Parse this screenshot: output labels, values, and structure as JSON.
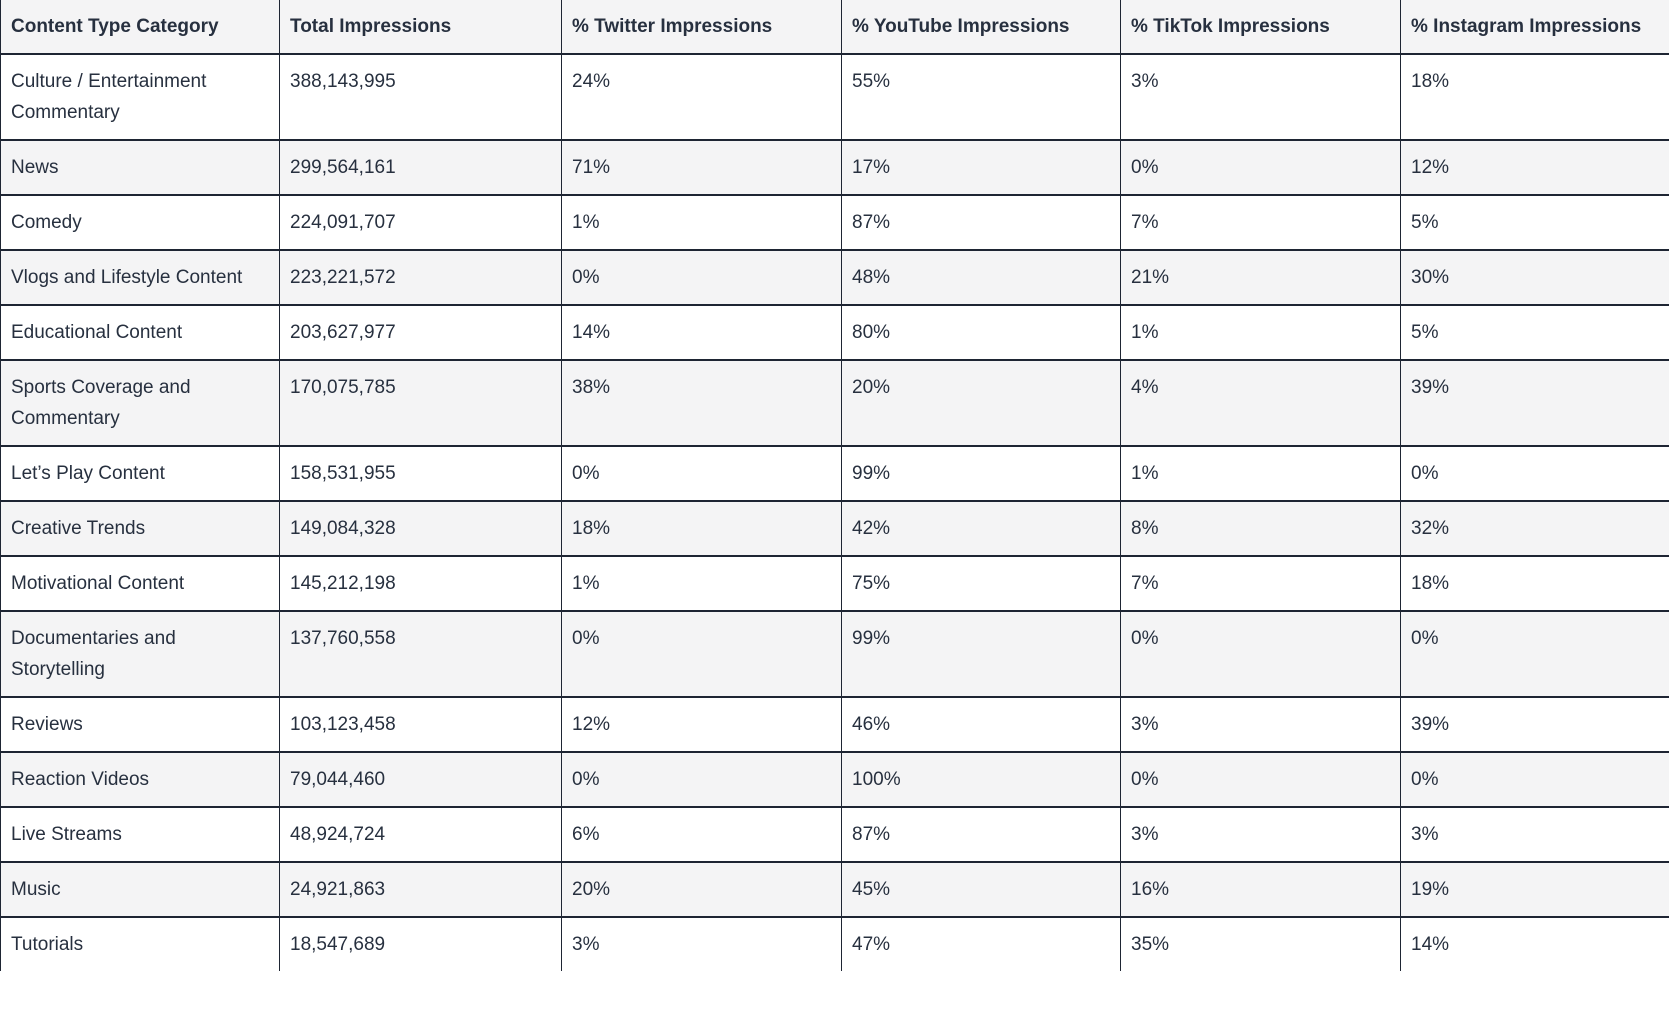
{
  "chart_data": {
    "type": "table",
    "columns": [
      "Content Type Category",
      "Total Impressions",
      "% Twitter Impressions",
      "% YouTube Impressions",
      "% TikTok Impressions",
      "% Instagram Impressions"
    ],
    "rows": [
      [
        "Culture / Entertainment Commentary",
        "388,143,995",
        "24%",
        "55%",
        "3%",
        "18%"
      ],
      [
        "News",
        "299,564,161",
        "71%",
        "17%",
        "0%",
        "12%"
      ],
      [
        "Comedy",
        "224,091,707",
        "1%",
        "87%",
        "7%",
        "5%"
      ],
      [
        "Vlogs and Lifestyle Content",
        "223,221,572",
        "0%",
        "48%",
        "21%",
        "30%"
      ],
      [
        "Educational Content",
        "203,627,977",
        "14%",
        "80%",
        "1%",
        "5%"
      ],
      [
        "Sports Coverage and Commentary",
        "170,075,785",
        "38%",
        "20%",
        "4%",
        "39%"
      ],
      [
        "Let’s Play Content",
        "158,531,955",
        "0%",
        "99%",
        "1%",
        "0%"
      ],
      [
        "Creative Trends",
        "149,084,328",
        "18%",
        "42%",
        "8%",
        "32%"
      ],
      [
        "Motivational Content",
        "145,212,198",
        "1%",
        "75%",
        "7%",
        "18%"
      ],
      [
        "Documentaries and Storytelling",
        "137,760,558",
        "0%",
        "99%",
        "0%",
        "0%"
      ],
      [
        "Reviews",
        "103,123,458",
        "12%",
        "46%",
        "3%",
        "39%"
      ],
      [
        "Reaction Videos",
        "79,044,460",
        "0%",
        "100%",
        "0%",
        "0%"
      ],
      [
        "Live Streams",
        "48,924,724",
        "6%",
        "87%",
        "3%",
        "3%"
      ],
      [
        "Music",
        "24,921,863",
        "20%",
        "45%",
        "16%",
        "19%"
      ],
      [
        "Tutorials",
        "18,547,689",
        "3%",
        "47%",
        "35%",
        "14%"
      ]
    ],
    "title": "",
    "layout": {
      "zebra_striping": true,
      "header_background": true,
      "gridlines": true
    }
  },
  "colors": {
    "border": "#1e2533",
    "header_bg": "#f4f4f5",
    "row_alt_bg": "#f4f4f5",
    "row_bg": "#ffffff",
    "text": "#27303f"
  }
}
